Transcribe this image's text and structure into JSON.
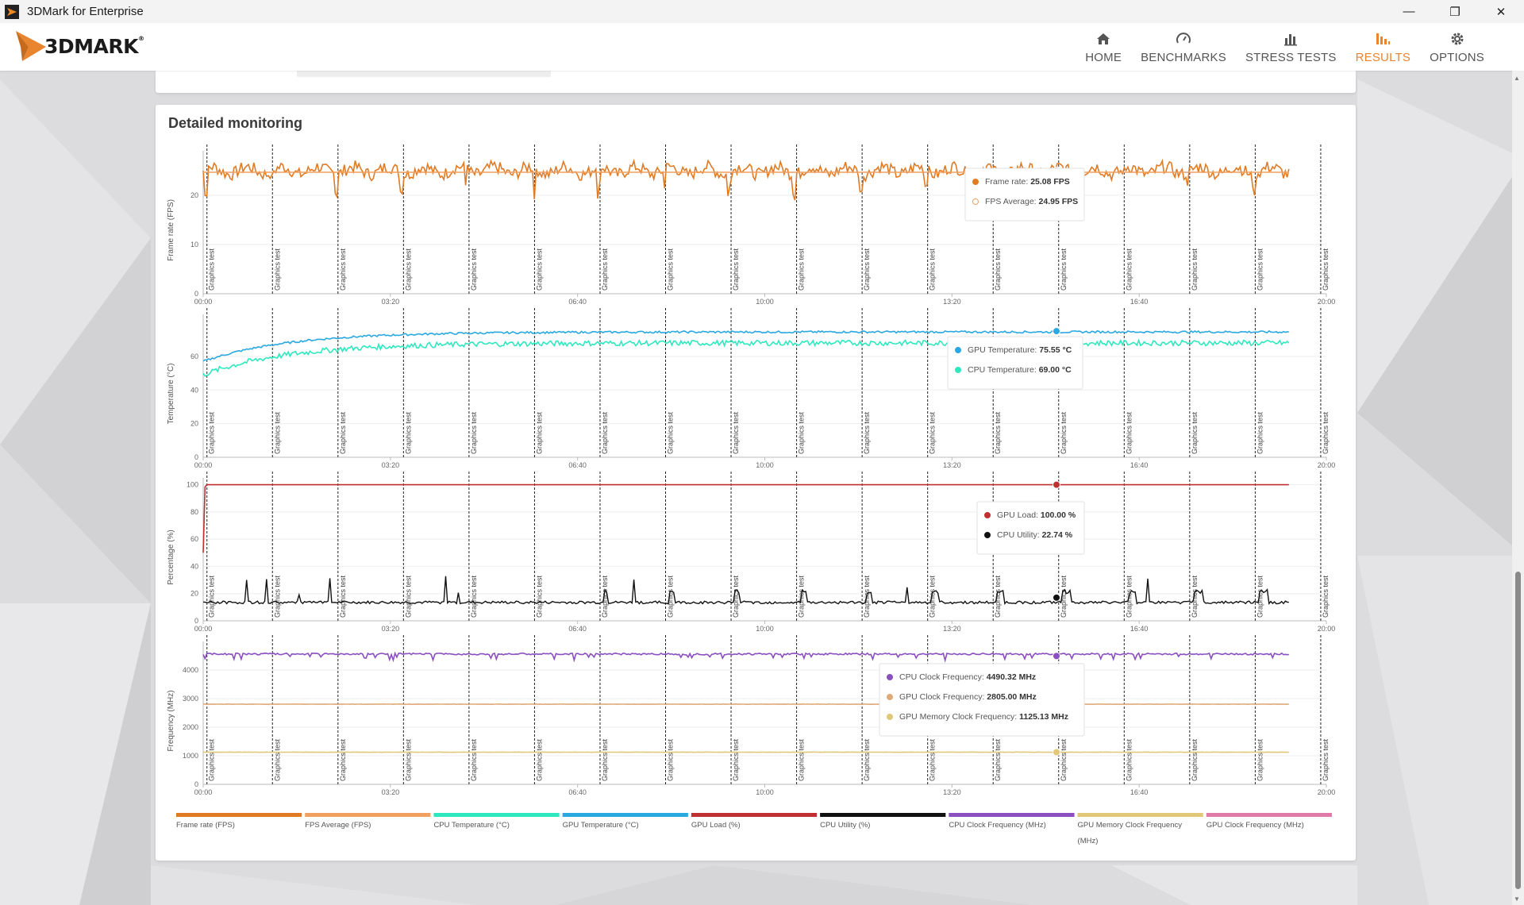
{
  "window": {
    "title": "3DMark for Enterprise",
    "controls": {
      "minimize": "—",
      "restore": "❐",
      "close": "✕"
    }
  },
  "header": {
    "logo_text": "3DMARK",
    "logo_mark": "®",
    "nav": [
      {
        "id": "home",
        "label": "HOME",
        "icon": "home-icon",
        "active": false
      },
      {
        "id": "benchmarks",
        "label": "BENCHMARKS",
        "icon": "gauge-icon",
        "active": false
      },
      {
        "id": "stress",
        "label": "STRESS TESTS",
        "icon": "bar-chart-icon",
        "active": false
      },
      {
        "id": "results",
        "label": "RESULTS",
        "icon": "results-icon",
        "active": true
      },
      {
        "id": "options",
        "label": "OPTIONS",
        "icon": "gear-icon",
        "active": false
      }
    ]
  },
  "monitoring": {
    "title": "Detailed monitoring",
    "marker_label": "Graphics test",
    "x_ticks": [
      "00:00",
      "03:20",
      "06:40",
      "10:00",
      "13:20",
      "16:40",
      "20:00"
    ],
    "legend": [
      {
        "label": "Frame rate (FPS)",
        "color": "#e07b24"
      },
      {
        "label": "FPS Average (FPS)",
        "color": "#f0a060"
      },
      {
        "label": "CPU Temperature (°C)",
        "color": "#2ee8c0"
      },
      {
        "label": "GPU Temperature (°C)",
        "color": "#2aa8e0"
      },
      {
        "label": "GPU Load (%)",
        "color": "#c03030"
      },
      {
        "label": "CPU Utility (%)",
        "color": "#111111"
      },
      {
        "label": "CPU Clock Frequency (MHz)",
        "color": "#8a4fc0"
      },
      {
        "label": "GPU Memory Clock Frequency (MHz)",
        "color": "#e0c878"
      },
      {
        "label": "GPU Clock Frequency (MHz)",
        "color": "#e07aa8"
      }
    ]
  },
  "chart_data": [
    {
      "type": "line",
      "ylabel": "Frame rate (FPS)",
      "ylim": [
        0,
        29
      ],
      "y_ticks": [
        0,
        10,
        20
      ],
      "x_range_seconds": [
        0,
        1200
      ],
      "series": [
        {
          "name": "Frame rate",
          "color": "#e07b24",
          "level": 25,
          "tooltip_value": "25.08 FPS"
        },
        {
          "name": "FPS Average",
          "color": "#f0a060",
          "level": 24.95,
          "tooltip_value": "24.95 FPS"
        }
      ]
    },
    {
      "type": "line",
      "ylabel": "Temperature (°C)",
      "ylim": [
        0,
        85
      ],
      "y_ticks": [
        0,
        20,
        40,
        60
      ],
      "x_range_seconds": [
        0,
        1200
      ],
      "series": [
        {
          "name": "GPU Temperature",
          "color": "#2aa8e0",
          "level": 75.55,
          "tooltip_value": "75.55 °C"
        },
        {
          "name": "CPU Temperature",
          "color": "#2ee8c0",
          "level": 69,
          "tooltip_value": "69.00 °C"
        }
      ]
    },
    {
      "type": "line",
      "ylabel": "Percentage (%)",
      "ylim": [
        0,
        105
      ],
      "y_ticks": [
        0,
        20,
        40,
        60,
        80,
        100
      ],
      "x_range_seconds": [
        0,
        1200
      ],
      "series": [
        {
          "name": "GPU Load",
          "color": "#c03030",
          "level": 100,
          "tooltip_value": "100.00 %"
        },
        {
          "name": "CPU Utility",
          "color": "#111111",
          "level": 17,
          "tooltip_value": "22.74 %"
        }
      ]
    },
    {
      "type": "line",
      "ylabel": "Frequency (MHz)",
      "ylim": [
        0,
        5000
      ],
      "y_ticks": [
        0,
        1000,
        2000,
        3000,
        4000
      ],
      "x_range_seconds": [
        0,
        1200
      ],
      "series": [
        {
          "name": "CPU Clock Frequency",
          "color": "#8a4fc0",
          "level": 4490,
          "tooltip_value": "4490.32 MHz"
        },
        {
          "name": "GPU Clock Frequency",
          "color": "#e0aa78",
          "level": 2805,
          "tooltip_value": "2805.00 MHz"
        },
        {
          "name": "GPU Memory Clock Frequency",
          "color": "#e0c878",
          "level": 1125,
          "tooltip_value": "1125.13 MHz"
        }
      ]
    }
  ]
}
